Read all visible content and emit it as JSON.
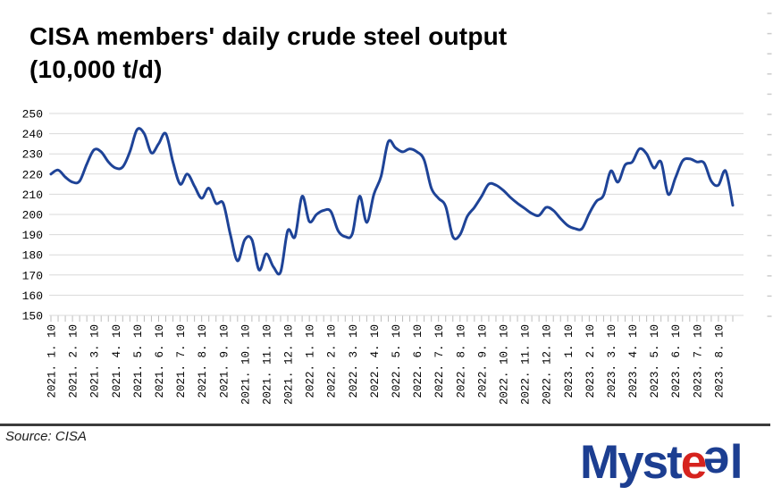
{
  "title": {
    "line1": "CISA members' daily crude steel output",
    "line2": "(10,000 t/d)"
  },
  "footer": {
    "source": "Source: CISA",
    "logo": {
      "part1": "Myst",
      "part2": "e",
      "part3": "e",
      "part4": "l"
    }
  },
  "chart_data": {
    "type": "line",
    "title": "CISA members' daily crude steel output",
    "unit": "10,000 t/d",
    "interval": "10-day data points, 3 per month",
    "ylim": [
      150,
      250
    ],
    "y_ticks": [
      150,
      160,
      170,
      180,
      190,
      200,
      210,
      220,
      230,
      240,
      250
    ],
    "grid": "horizontal",
    "legend": "none",
    "line_color": "#1e4397",
    "grid_color": "#d9d9d9",
    "tick_color": "#bdbdbd",
    "points_per_tick": 3,
    "x_tick_labels": [
      "2021. 1. 10",
      "2021. 2. 10",
      "2021. 3. 10",
      "2021. 4. 10",
      "2021. 5. 10",
      "2021. 6. 10",
      "2021. 7. 10",
      "2021. 8. 10",
      "2021. 9. 10",
      "2021. 10. 10",
      "2021. 11. 10",
      "2021. 12. 10",
      "2022. 1. 10",
      "2022. 2. 10",
      "2022. 3. 10",
      "2022. 4. 10",
      "2022. 5. 10",
      "2022. 6. 10",
      "2022. 7. 10",
      "2022. 8. 10",
      "2022. 9. 10",
      "2022. 10. 10",
      "2022. 11. 10",
      "2022. 12. 10",
      "2023. 1. 10",
      "2023. 2. 10",
      "2023. 3. 10",
      "2023. 4. 10",
      "2023. 5. 10",
      "2023. 6. 10",
      "2023. 7. 10",
      "2023. 8. 10"
    ],
    "series": [
      {
        "name": "CISA members' daily crude steel output (10,000 t/d)",
        "values": [
          220,
          222,
          218.5,
          216,
          216.5,
          225,
          232,
          231,
          226,
          223,
          223.5,
          231,
          242,
          240,
          230.5,
          235,
          240,
          226,
          215,
          220,
          214,
          208,
          213,
          205.5,
          205.5,
          190,
          177,
          187.5,
          187.5,
          172.5,
          180.5,
          174,
          171.5,
          192,
          189,
          209,
          196.5,
          200,
          202,
          201.5,
          192,
          189,
          190.5,
          209,
          196,
          210,
          219,
          236,
          233,
          231,
          232.5,
          231,
          227,
          213,
          208,
          204,
          189,
          190,
          199,
          203.5,
          209,
          215,
          214.5,
          212,
          208.5,
          205.5,
          203,
          200.5,
          199.5,
          203.5,
          202,
          198,
          194.5,
          193,
          193,
          200.5,
          206.5,
          209.5,
          221.5,
          216,
          224.5,
          226,
          232.5,
          230,
          223,
          226,
          210,
          218,
          226.5,
          227.5,
          226,
          225.5,
          216.5,
          214.5,
          221.5,
          204.5
        ]
      }
    ]
  }
}
